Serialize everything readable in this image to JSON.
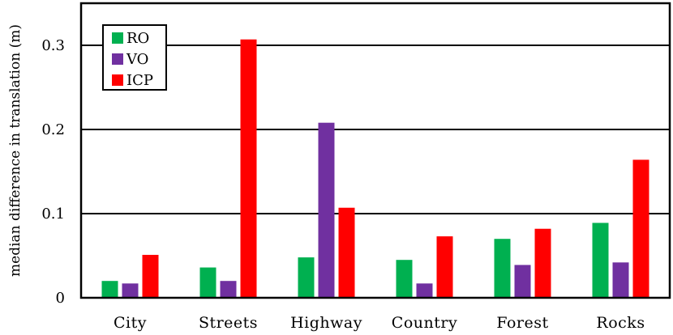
{
  "chart_data": {
    "type": "bar",
    "title": "",
    "xlabel": "",
    "ylabel": "median difference in translation (m)",
    "categories": [
      "City",
      "Streets",
      "Highway",
      "Country",
      "Forest",
      "Rocks"
    ],
    "series": [
      {
        "name": "RO",
        "color": "#00b050",
        "values": [
          0.02,
          0.036,
          0.048,
          0.045,
          0.07,
          0.089
        ]
      },
      {
        "name": "VO",
        "color": "#7030a0",
        "values": [
          0.017,
          0.02,
          0.208,
          0.017,
          0.039,
          0.042
        ]
      },
      {
        "name": "ICP",
        "color": "#ff0000",
        "values": [
          0.051,
          0.307,
          0.107,
          0.073,
          0.082,
          0.164
        ]
      }
    ],
    "ylim": [
      0,
      0.35
    ],
    "yticks": [
      0,
      0.1,
      0.2,
      0.3
    ],
    "ytick_labels": [
      "0",
      "0.1",
      "0.2",
      "0.3"
    ],
    "grid": true,
    "legend": "top-left"
  }
}
